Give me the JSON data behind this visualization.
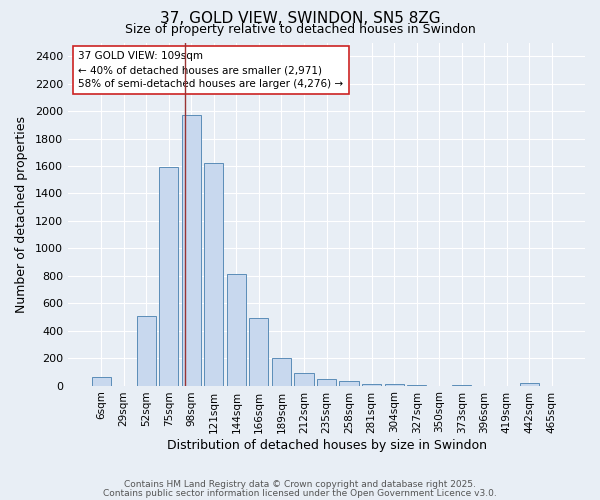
{
  "title1": "37, GOLD VIEW, SWINDON, SN5 8ZG",
  "title2": "Size of property relative to detached houses in Swindon",
  "xlabel": "Distribution of detached houses by size in Swindon",
  "ylabel": "Number of detached properties",
  "bar_labels": [
    "6sqm",
    "29sqm",
    "52sqm",
    "75sqm",
    "98sqm",
    "121sqm",
    "144sqm",
    "166sqm",
    "189sqm",
    "212sqm",
    "235sqm",
    "258sqm",
    "281sqm",
    "304sqm",
    "327sqm",
    "350sqm",
    "373sqm",
    "396sqm",
    "419sqm",
    "442sqm",
    "465sqm"
  ],
  "bar_values": [
    60,
    0,
    510,
    1590,
    1970,
    1620,
    810,
    490,
    200,
    90,
    45,
    30,
    15,
    10,
    5,
    0,
    5,
    0,
    0,
    20,
    0
  ],
  "bar_color": "#c8d8ee",
  "bar_edge_color": "#5b8db8",
  "vline_x": 3.72,
  "vline_color": "#993333",
  "annotation_text": "37 GOLD VIEW: 109sqm\n← 40% of detached houses are smaller (2,971)\n58% of semi-detached houses are larger (4,276) →",
  "annotation_box_color": "#ffffff",
  "annotation_box_edge": "#cc2222",
  "ylim": [
    0,
    2500
  ],
  "yticks": [
    0,
    200,
    400,
    600,
    800,
    1000,
    1200,
    1400,
    1600,
    1800,
    2000,
    2200,
    2400
  ],
  "footer1": "Contains HM Land Registry data © Crown copyright and database right 2025.",
  "footer2": "Contains public sector information licensed under the Open Government Licence v3.0.",
  "bg_color": "#e8eef5",
  "plot_bg_color": "#e8eef5",
  "grid_color": "#ffffff",
  "title1_fontsize": 11,
  "title2_fontsize": 9
}
